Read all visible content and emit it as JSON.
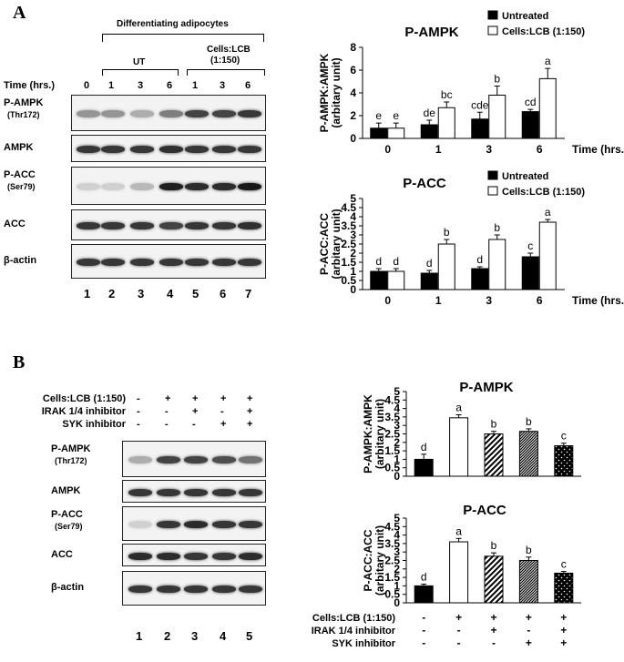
{
  "panelA": {
    "letter": "A",
    "header": "Differentiating adipocytes",
    "group_ut": "UT",
    "group_lcb_1": "Cells:LCB",
    "group_lcb_2": "(1:150)",
    "time_label": "Time (hrs.)",
    "times": [
      "0",
      "1",
      "3",
      "6",
      "1",
      "3",
      "6"
    ],
    "blot_labels": [
      {
        "main": "P-AMPK",
        "sub": "(Thr172)"
      },
      {
        "main": "AMPK",
        "sub": ""
      },
      {
        "main": "P-ACC",
        "sub": "(Ser79)"
      },
      {
        "main": "ACC",
        "sub": ""
      },
      {
        "main": "β-actin",
        "sub": ""
      }
    ],
    "lanes": [
      "1",
      "2",
      "3",
      "4",
      "5",
      "6",
      "7"
    ]
  },
  "panelB": {
    "letter": "B",
    "conditions": [
      {
        "label": "Cells:LCB (1:150)",
        "signs": [
          "-",
          "+",
          "+",
          "+",
          "+"
        ]
      },
      {
        "label": "IRAK 1/4 inhibitor",
        "signs": [
          "-",
          "-",
          "+",
          "-",
          "+"
        ]
      },
      {
        "label": "SYK inhibitor",
        "signs": [
          "-",
          "-",
          "-",
          "+",
          "+"
        ]
      }
    ],
    "blot_labels": [
      {
        "main": "P-AMPK",
        "sub": "(Thr172)"
      },
      {
        "main": "AMPK",
        "sub": ""
      },
      {
        "main": "P-ACC",
        "sub": "(Ser79)"
      },
      {
        "main": "ACC",
        "sub": ""
      },
      {
        "main": "β-actin",
        "sub": ""
      }
    ],
    "lanes": [
      "1",
      "2",
      "3",
      "4",
      "5"
    ]
  },
  "legend": {
    "untreated": "Untreated",
    "treated": "Cells:LCB (1:150)"
  },
  "chart_data": [
    {
      "type": "bar",
      "title": "P-AMPK",
      "ylabel": [
        "P-AMPK:AMPK",
        "(arbitary unit)"
      ],
      "xlabel": "Time (hrs.)",
      "categories": [
        "0",
        "1",
        "3",
        "6"
      ],
      "ylim": [
        0,
        8
      ],
      "yticks": [
        0,
        2,
        4,
        6,
        8
      ],
      "legend": "top-right",
      "series": [
        {
          "name": "Untreated",
          "values": [
            0.9,
            1.2,
            1.7,
            2.35
          ],
          "errors": [
            0.45,
            0.4,
            0.6,
            0.2
          ],
          "letters": [
            "e",
            "de",
            "cde",
            "cd"
          ]
        },
        {
          "name": "Cells:LCB (1:150)",
          "values": [
            0.9,
            2.7,
            3.8,
            5.25
          ],
          "errors": [
            0.45,
            0.5,
            0.8,
            0.9
          ],
          "letters": [
            "e",
            "bc",
            "b",
            "a"
          ]
        }
      ]
    },
    {
      "type": "bar",
      "title": "P-ACC",
      "ylabel": [
        "P-ACC:ACC",
        "(arbitary unit)"
      ],
      "xlabel": "Time (hrs.)",
      "categories": [
        "0",
        "1",
        "3",
        "6"
      ],
      "ylim": [
        0,
        5
      ],
      "yticks": [
        0,
        0.5,
        1,
        1.5,
        2,
        2.5,
        3,
        3.5,
        4,
        4.5,
        5
      ],
      "legend": "top-right",
      "series": [
        {
          "name": "Untreated",
          "values": [
            1.0,
            0.9,
            1.15,
            1.8
          ],
          "errors": [
            0.15,
            0.15,
            0.1,
            0.2
          ],
          "letters": [
            "d",
            "d",
            "d",
            "c"
          ]
        },
        {
          "name": "Cells:LCB (1:150)",
          "values": [
            1.0,
            2.5,
            2.75,
            3.7
          ],
          "errors": [
            0.15,
            0.25,
            0.25,
            0.15
          ],
          "letters": [
            "d",
            "b",
            "b",
            "a"
          ]
        }
      ]
    },
    {
      "type": "bar",
      "title": "P-AMPK",
      "ylabel": [
        "P-AMPK:AMPK",
        "(arbitary unit)"
      ],
      "categories": [
        "1",
        "2",
        "3",
        "4",
        "5"
      ],
      "ylim": [
        0,
        5
      ],
      "yticks": [
        0,
        0.5,
        1,
        1.5,
        2,
        2.5,
        3,
        3.5,
        4,
        4.5,
        5
      ],
      "patterns": [
        "solid",
        "white",
        "diag-wide",
        "diag-dense",
        "dots"
      ],
      "values": [
        1.0,
        3.45,
        2.5,
        2.65,
        1.8
      ],
      "errors": [
        0.3,
        0.18,
        0.15,
        0.15,
        0.15
      ],
      "letters": [
        "d",
        "a",
        "b",
        "b",
        "c"
      ]
    },
    {
      "type": "bar",
      "title": "P-ACC",
      "ylabel": [
        "P-ACC:ACC",
        "(arbitary unit)"
      ],
      "categories": [
        "1",
        "2",
        "3",
        "4",
        "5"
      ],
      "ylim": [
        0,
        5
      ],
      "yticks": [
        0,
        0.5,
        1,
        1.5,
        2,
        2.5,
        3,
        3.5,
        4,
        4.5,
        5
      ],
      "patterns": [
        "solid",
        "white",
        "diag-wide",
        "diag-dense",
        "dots"
      ],
      "values": [
        1.0,
        3.6,
        2.75,
        2.5,
        1.75
      ],
      "errors": [
        0.1,
        0.2,
        0.2,
        0.2,
        0.1
      ],
      "letters": [
        "d",
        "a",
        "b",
        "b",
        "c"
      ],
      "conditions": [
        {
          "label": "Cells:LCB (1:150)",
          "signs": [
            "-",
            "+",
            "+",
            "+",
            "+"
          ]
        },
        {
          "label": "IRAK 1/4 inhibitor",
          "signs": [
            "-",
            "-",
            "+",
            "-",
            "+"
          ]
        },
        {
          "label": "SYK inhibitor",
          "signs": [
            "-",
            "-",
            "-",
            "+",
            "+"
          ]
        }
      ]
    }
  ]
}
